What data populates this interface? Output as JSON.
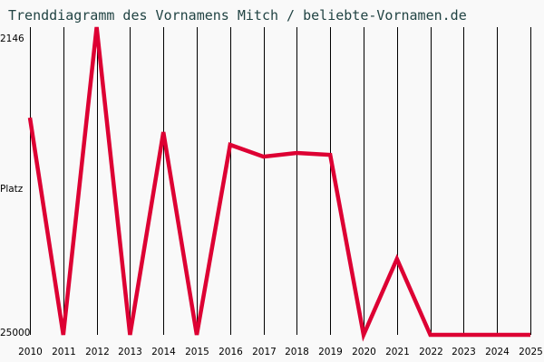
{
  "title": "Trenddiagramm des Vornamens Mitch / beliebte-Vornamen.de",
  "colors": {
    "line": "#dd0033",
    "grid": "#000000",
    "background": "#f9f9f9",
    "title": "#224444"
  },
  "chart_data": {
    "type": "line",
    "title": "Trenddiagramm des Vornamens Mitch / beliebte-Vornamen.de",
    "xlabel": "",
    "ylabel": "Platz",
    "y_inverted": true,
    "ylim": [
      25000,
      2146
    ],
    "y_tick_labels": [
      "2146",
      "Platz",
      "25000"
    ],
    "categories": [
      "2010",
      "2011",
      "2012",
      "2013",
      "2014",
      "2015",
      "2016",
      "2017",
      "2018",
      "2019",
      "2020",
      "2021",
      "2022",
      "2023",
      "2024",
      "2025"
    ],
    "series": [
      {
        "name": "Mitch",
        "values": [
          8330,
          25000,
          1600,
          25000,
          9440,
          25000,
          10410,
          11320,
          11040,
          11180,
          25000,
          19170,
          25000,
          25000,
          25000,
          25000
        ]
      }
    ],
    "grid": {
      "vertical": true,
      "horizontal": false
    },
    "legend": null
  }
}
